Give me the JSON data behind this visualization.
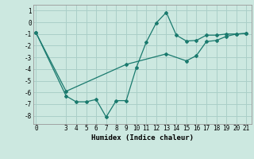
{
  "xlabel": "Humidex (Indice chaleur)",
  "background_color": "#cce8e0",
  "grid_color": "#aacfc8",
  "line_color": "#1a7a6e",
  "line1_x": [
    0,
    3,
    4,
    5,
    6,
    7,
    8,
    9,
    10,
    11,
    12,
    13,
    14,
    15,
    16,
    17,
    18,
    19,
    20,
    21
  ],
  "line1_y": [
    -0.9,
    -6.3,
    -6.8,
    -6.8,
    -6.6,
    -8.1,
    -6.7,
    -6.7,
    -3.9,
    -1.7,
    -0.05,
    0.85,
    -1.1,
    -1.6,
    -1.55,
    -1.1,
    -1.1,
    -1.0,
    -1.0,
    -0.95
  ],
  "line2_x": [
    0,
    3,
    9,
    13,
    15,
    16,
    17,
    18,
    19,
    20,
    21
  ],
  "line2_y": [
    -0.9,
    -5.9,
    -3.6,
    -2.7,
    -3.3,
    -2.85,
    -1.65,
    -1.55,
    -1.2,
    -1.0,
    -0.95
  ],
  "ylim": [
    -8.7,
    1.5
  ],
  "xlim": [
    -0.3,
    21.5
  ],
  "yticks": [
    1,
    0,
    -1,
    -2,
    -3,
    -4,
    -5,
    -6,
    -7,
    -8
  ],
  "xticks": [
    0,
    3,
    4,
    5,
    6,
    7,
    8,
    9,
    10,
    11,
    12,
    13,
    14,
    15,
    16,
    17,
    18,
    19,
    20,
    21
  ],
  "tick_fontsize": 5.5,
  "xlabel_fontsize": 6.5
}
